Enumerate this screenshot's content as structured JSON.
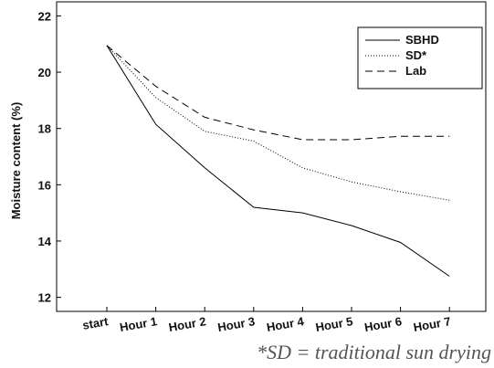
{
  "chart_data": {
    "type": "line",
    "categories": [
      "start",
      "Hour 1",
      "Hour 2",
      "Hour 3",
      "Hour 4",
      "Hour 5",
      "Hour 6",
      "Hour 7"
    ],
    "series": [
      {
        "name": "SBHD",
        "style": "solid",
        "values": [
          20.95,
          18.15,
          16.6,
          15.2,
          15.0,
          14.55,
          13.95,
          12.75
        ]
      },
      {
        "name": "SD",
        "style": "dotted",
        "values": [
          20.95,
          19.1,
          17.9,
          17.55,
          16.6,
          16.1,
          15.75,
          15.45
        ]
      },
      {
        "name": "Lab",
        "style": "dashed",
        "values": [
          20.95,
          19.5,
          18.4,
          17.95,
          17.6,
          17.6,
          17.72,
          17.72
        ]
      }
    ],
    "title": "",
    "xlabel": "",
    "ylabel": "Moisture content (%)",
    "ylim": [
      11.5,
      22.5
    ],
    "yticks": [
      12,
      14,
      16,
      18,
      20,
      22
    ],
    "grid": false,
    "legend_position": "top-right",
    "legend_labels": [
      "SBHD",
      "SD*",
      "Lab"
    ],
    "line_color": "#000000",
    "footnote": "*SD = traditional sun drying"
  }
}
